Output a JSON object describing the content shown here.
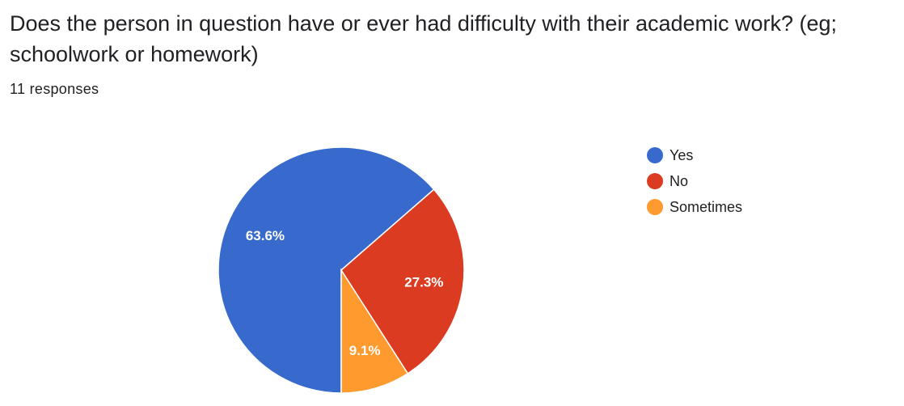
{
  "question": {
    "title": "Does the person in question have or ever had difficulty with their academic work? (eg; schoolwork or homework)",
    "responses": "11 responses"
  },
  "chart_data": {
    "type": "pie",
    "categories": [
      "Yes",
      "No",
      "Sometimes"
    ],
    "values": [
      63.6,
      27.3,
      9.1
    ],
    "labels": [
      "63.6%",
      "27.3%",
      "9.1%"
    ],
    "colors": [
      "#3869CC",
      "#DA3B21",
      "#FF9A2E"
    ],
    "legend_position": "right"
  }
}
